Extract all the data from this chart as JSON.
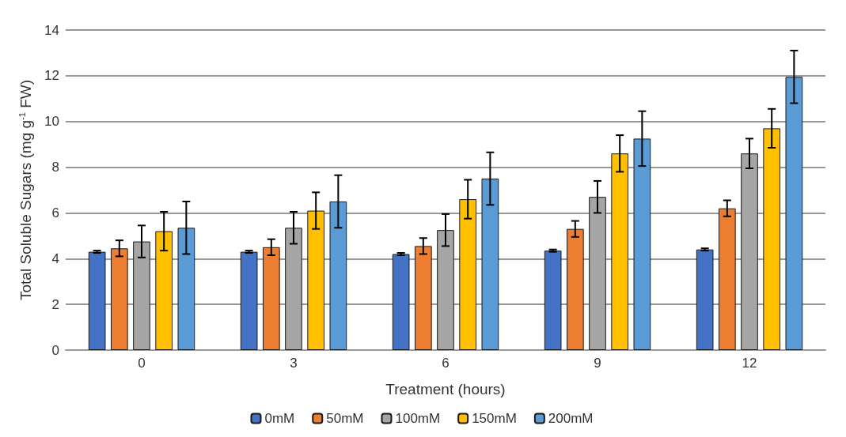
{
  "chart_data": {
    "type": "bar",
    "xlabel": "Treatment (hours)",
    "ylabel": "Total Soluble Sugars (mg g$^{-1}$ FW)",
    "categories": [
      "0",
      "3",
      "6",
      "9",
      "12"
    ],
    "series": [
      {
        "name": "0mM",
        "color": "#4472c4",
        "values": [
          4.3,
          4.3,
          4.2,
          4.35,
          4.4
        ],
        "errors": [
          0.05,
          0.05,
          0.05,
          0.05,
          0.05
        ]
      },
      {
        "name": "50mM",
        "color": "#ed7d31",
        "values": [
          4.45,
          4.5,
          4.55,
          5.3,
          6.2
        ],
        "errors": [
          0.35,
          0.35,
          0.35,
          0.35,
          0.35
        ]
      },
      {
        "name": "100mM",
        "color": "#a5a5a5",
        "values": [
          4.75,
          5.35,
          5.25,
          6.7,
          8.6
        ],
        "errors": [
          0.7,
          0.7,
          0.7,
          0.7,
          0.65
        ]
      },
      {
        "name": "150mM",
        "color": "#ffc000",
        "values": [
          5.2,
          6.1,
          6.6,
          8.6,
          9.7
        ],
        "errors": [
          0.85,
          0.8,
          0.85,
          0.8,
          0.85
        ]
      },
      {
        "name": "200mM",
        "color": "#5b9bd5",
        "values": [
          5.35,
          6.5,
          7.5,
          9.25,
          11.95
        ],
        "errors": [
          1.15,
          1.15,
          1.15,
          1.2,
          1.15
        ]
      }
    ],
    "ylim": [
      0,
      14
    ],
    "yticks": [
      0,
      2,
      4,
      6,
      8,
      10,
      12,
      14
    ],
    "grid": "y",
    "legend": "bottom"
  }
}
